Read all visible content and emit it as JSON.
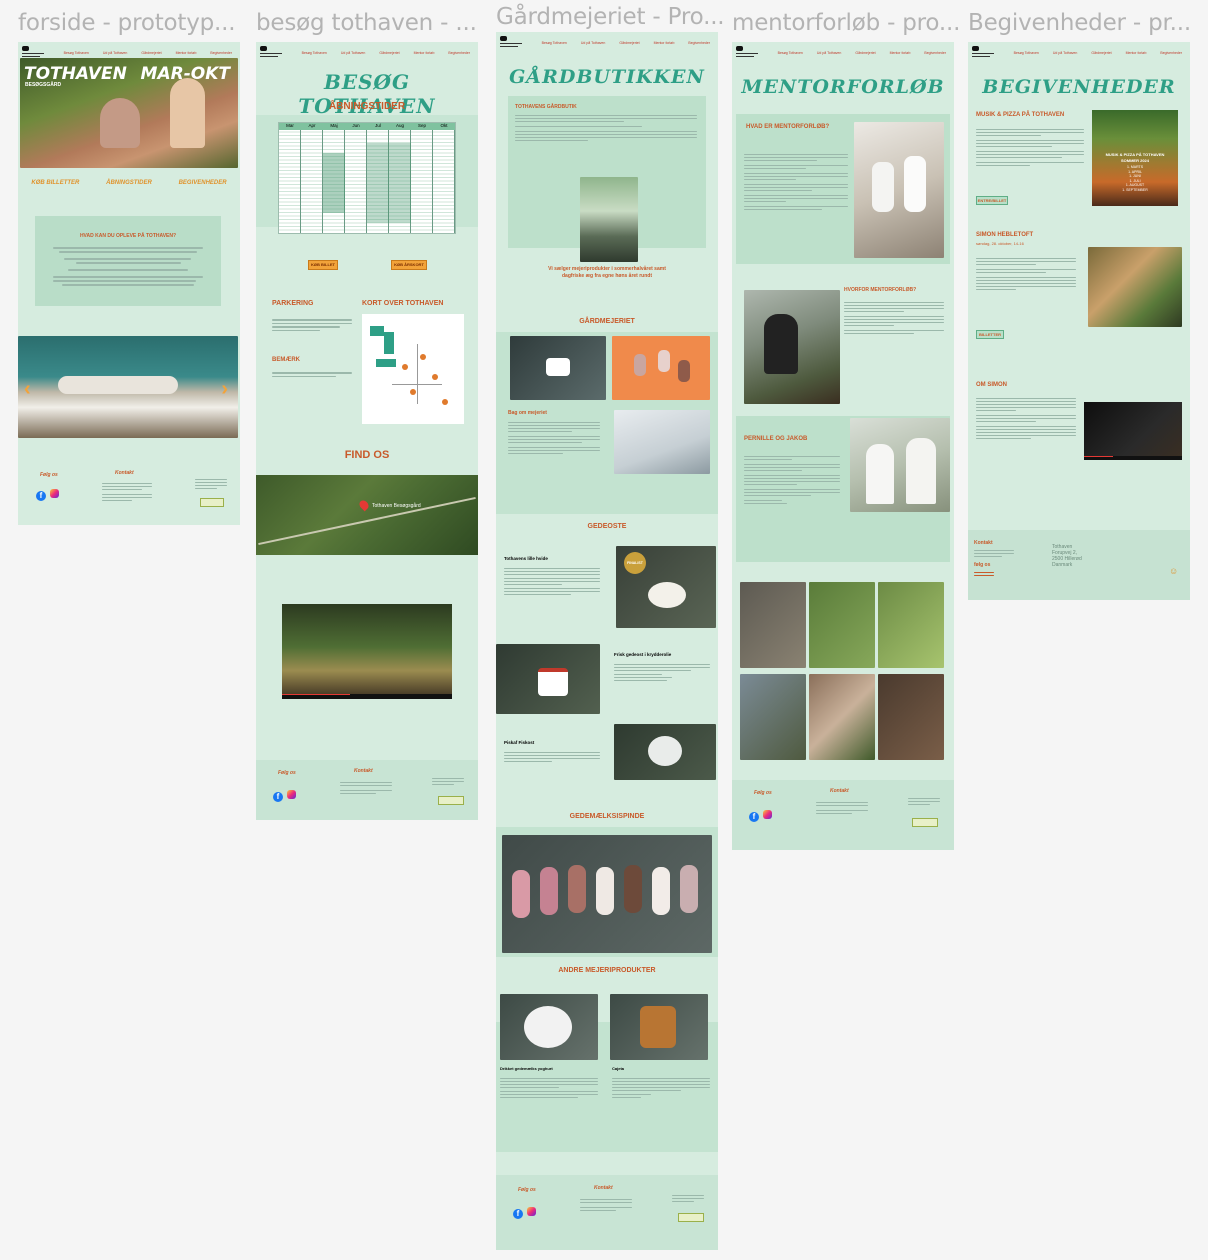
{
  "frames": [
    {
      "title": "forside - prototyp..."
    },
    {
      "title": "besøg tothaven - ..."
    },
    {
      "title": "Gårdmejeriet - Pro..."
    },
    {
      "title": "mentorforløb - pro..."
    },
    {
      "title": "Begivenheder - pr..."
    }
  ],
  "nav": [
    "Besøg Tothaven",
    "Ud på Tothaven",
    "Gårdmejeriet",
    "Mentor forløb",
    "Begivenheder"
  ],
  "forside": {
    "hero_title": "TOTHAVEN",
    "hero_sub": "BESØGSGÅRD",
    "hero_season": "MAR-OKT",
    "links": [
      "KØB BILLETTER",
      "ÅBNINGSTIDER",
      "BEGIVENHEDER"
    ],
    "box_title": "HVAD KAN DU OPLEVE PÅ TOTHAVEN?",
    "follow": "Følg os",
    "contact": "Kontakt"
  },
  "besog": {
    "title": "BESØG TOTHAVEN",
    "hours": "ÅBNINGSTIDER",
    "months": [
      "Mar",
      "Apr",
      "Maj",
      "Jun",
      "Jul",
      "Aug",
      "Sep",
      "Okt"
    ],
    "btn_buy": "KØB BILLET",
    "btn_season": "KØB ÅRSKORT",
    "parking": "PARKERING",
    "map_title": "KORT OVER TOTHAVEN",
    "note": "BEMÆRK",
    "find": "FIND OS",
    "map_pin": "Tothaven Besøgsgård",
    "follow": "Følg os",
    "contact": "Kontakt"
  },
  "mejeri": {
    "title": "GÅRDBUTIKKEN",
    "shop_heading": "TOTHAVENS GÅRDBUTIK",
    "caption": "Vi sælger mejeriprodukter i sommerhalvåret samt dagfriske æg fra egne høns året rundt",
    "dairy": "GÅRDMEJERIET",
    "om": "Bag om mejeriet",
    "cheese": "GEDEOSTE",
    "cheese_items": [
      "Tothavens lille hvide",
      "Frisk gedeost i krydderolie",
      "Piskaf Fiskost"
    ],
    "award": "FINALIST",
    "ice": "GEDEMÆLKSISPINDE",
    "other": "ANDRE MEJERIPRODUKTER",
    "other_items": [
      "Drikket gedemælks yoghurt",
      "Cajeta"
    ],
    "follow": "Følg os",
    "contact": "Kontakt"
  },
  "mentor": {
    "title": "MENTORFORLØB",
    "q1": "HVAD ER MENTORFORLØB?",
    "q2": "HVORFOR MENTORFORLØB?",
    "people": "PERNILLE OG JAKOB",
    "follow": "Følg os",
    "contact": "Kontakt"
  },
  "begiv": {
    "title": "BEGIVENHEDER",
    "event1": "MUSIK & PIZZA PÅ TOTHAVEN",
    "poster_title": "MUSIK & PIZZA PÅ TOTHAVEN",
    "poster_sub": "SOMMER 2024",
    "poster_dates": [
      "1. MARTS",
      "1. APRIL",
      "1. JUNI",
      "1. JULI",
      "1. AUGUST",
      "1. SEPTEMBER"
    ],
    "btn1": "ENTRE/BILLET",
    "event2": "SIMON HEBLETOFT",
    "event2_date": "søndag, 28. oktober, 14-16",
    "btn2": "BILLETTER",
    "about": "OM SIMON",
    "contact_h": "Kontakt",
    "follow": "følg os",
    "address": [
      "Tothaven",
      "Forupvej 2,",
      "2500 Hillerød",
      "Danmark"
    ]
  },
  "colors": {
    "bg": "#d6ecdf",
    "accent": "#2e9f86",
    "red": "#c85a2a",
    "orange": "#f2a33a"
  }
}
